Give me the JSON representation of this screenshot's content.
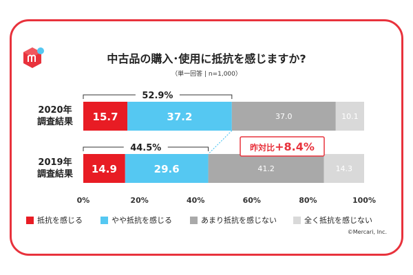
{
  "title": "中古品の購入･使用に抵抗を感じますか?",
  "subtitle": "（単一回答 | n=1,000）",
  "copyright": "©Mercari, Inc.",
  "colors": {
    "frame": "#e8323c",
    "strong": "#e81c24",
    "somewhat": "#55c8f2",
    "little": "#a9a9a9",
    "none": "#d9d9d9",
    "callout": "#e8323c"
  },
  "chart_data": {
    "type": "bar",
    "orientation": "horizontal",
    "stacked": true,
    "categories": [
      "2020年\n調査結果",
      "2019年\n調査結果"
    ],
    "series": [
      {
        "name": "抵抗を感じる",
        "values": [
          15.7,
          14.9
        ]
      },
      {
        "name": "やや抵抗を感じる",
        "values": [
          37.2,
          29.6
        ]
      },
      {
        "name": "あまり抵抗を感じない",
        "values": [
          37.0,
          41.2
        ]
      },
      {
        "name": "全く抵抗を感じない",
        "values": [
          10.1,
          14.3
        ]
      }
    ],
    "value_labels": [
      [
        "15.7",
        "37.2",
        "37.0",
        "10.1"
      ],
      [
        "14.9",
        "29.6",
        "41.2",
        "14.3"
      ]
    ],
    "brackets": [
      "52.9%",
      "44.5%"
    ],
    "callout": {
      "prefix": "昨対比",
      "value": "+8.4%"
    },
    "x_ticks": [
      {
        "value": 0,
        "label": "0%"
      },
      {
        "value": 20,
        "label": "20%"
      },
      {
        "value": 40,
        "label": "40%"
      },
      {
        "value": 60,
        "label": "60%"
      },
      {
        "value": 80,
        "label": "80%"
      },
      {
        "value": 100,
        "label": "100%"
      }
    ],
    "xlim": [
      0,
      100
    ],
    "legend_position": "bottom"
  }
}
